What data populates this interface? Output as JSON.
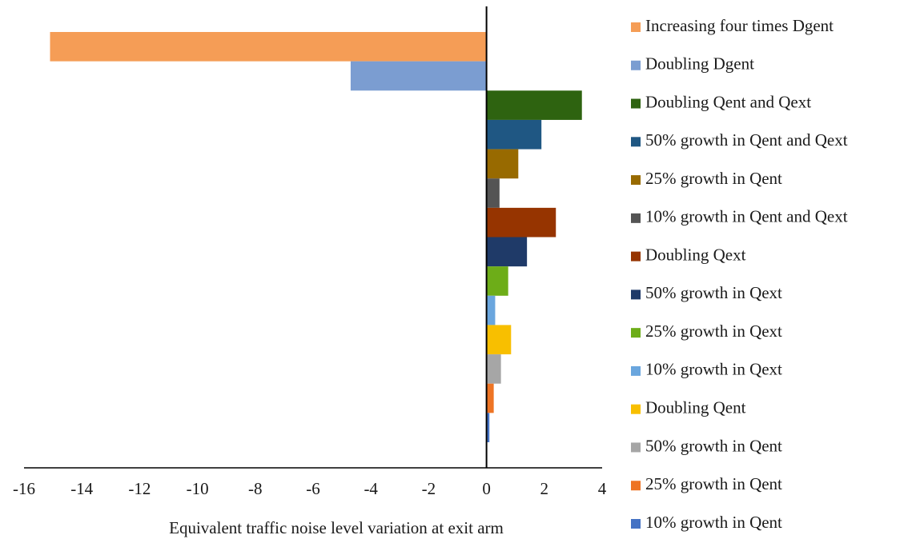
{
  "chart_data": {
    "type": "barh",
    "xlabel": "Equivalent traffic noise level variation at exit arm",
    "categories": [
      "Increasing four times Dgent",
      "Doubling Dgent",
      "Doubling Qent and Qext",
      "50% growth in Qent and Qext",
      "25% growth in Qent",
      "10% growth in Qent and Qext",
      "Doubling Qext",
      "50% growth in Qext",
      "25% growth in Qext",
      "10% growth in Qext",
      "Doubling Qent",
      "50% growth in Qent",
      "25% growth in Qent",
      "10% growth in Qent"
    ],
    "values": [
      -15.1,
      -4.7,
      3.3,
      1.9,
      1.1,
      0.45,
      2.4,
      1.4,
      0.75,
      0.3,
      0.85,
      0.5,
      0.25,
      0.1
    ],
    "colors": [
      "#f59d56",
      "#7b9dd1",
      "#2e6310",
      "#1f5783",
      "#986a00",
      "#545454",
      "#963400",
      "#1f3a68",
      "#6dad18",
      "#6aa6de",
      "#f8bf00",
      "#a6a6a6",
      "#ee7424",
      "#4472c4"
    ],
    "xlim": [
      -16,
      4
    ],
    "xticks": [
      -16,
      -14,
      -12,
      -10,
      -8,
      -6,
      -4,
      -2,
      0,
      2,
      4
    ]
  }
}
